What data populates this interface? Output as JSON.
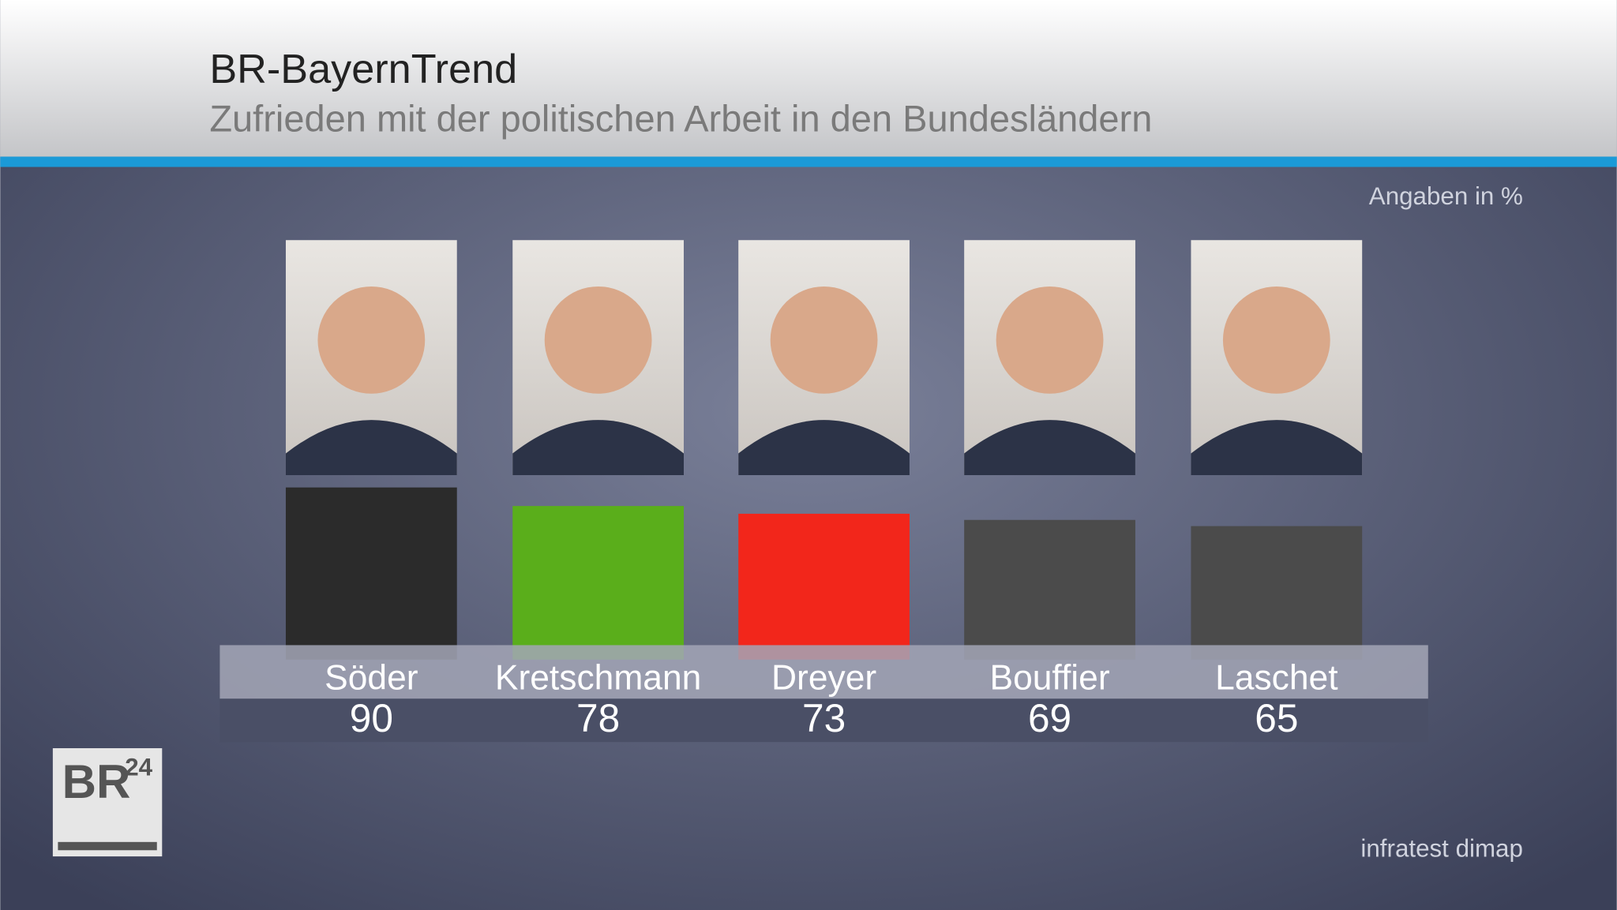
{
  "chart_data": {
    "type": "bar",
    "title": "BR-BayernTrend",
    "subtitle": "Zufrieden mit der politischen Arbeit in den Bundesländern",
    "unit_note": "Angaben in %",
    "source": "infratest dimap",
    "logo": {
      "main": "BR",
      "sup": "24"
    },
    "categories": [
      "Söder",
      "Kretschmann",
      "Dreyer",
      "Bouffier",
      "Laschet"
    ],
    "values": [
      90,
      78,
      73,
      69,
      65
    ],
    "colors": [
      "#2b2b2b",
      "#5aae1b",
      "#f2261b",
      "#4b4b4b",
      "#4b4b4b"
    ]
  }
}
